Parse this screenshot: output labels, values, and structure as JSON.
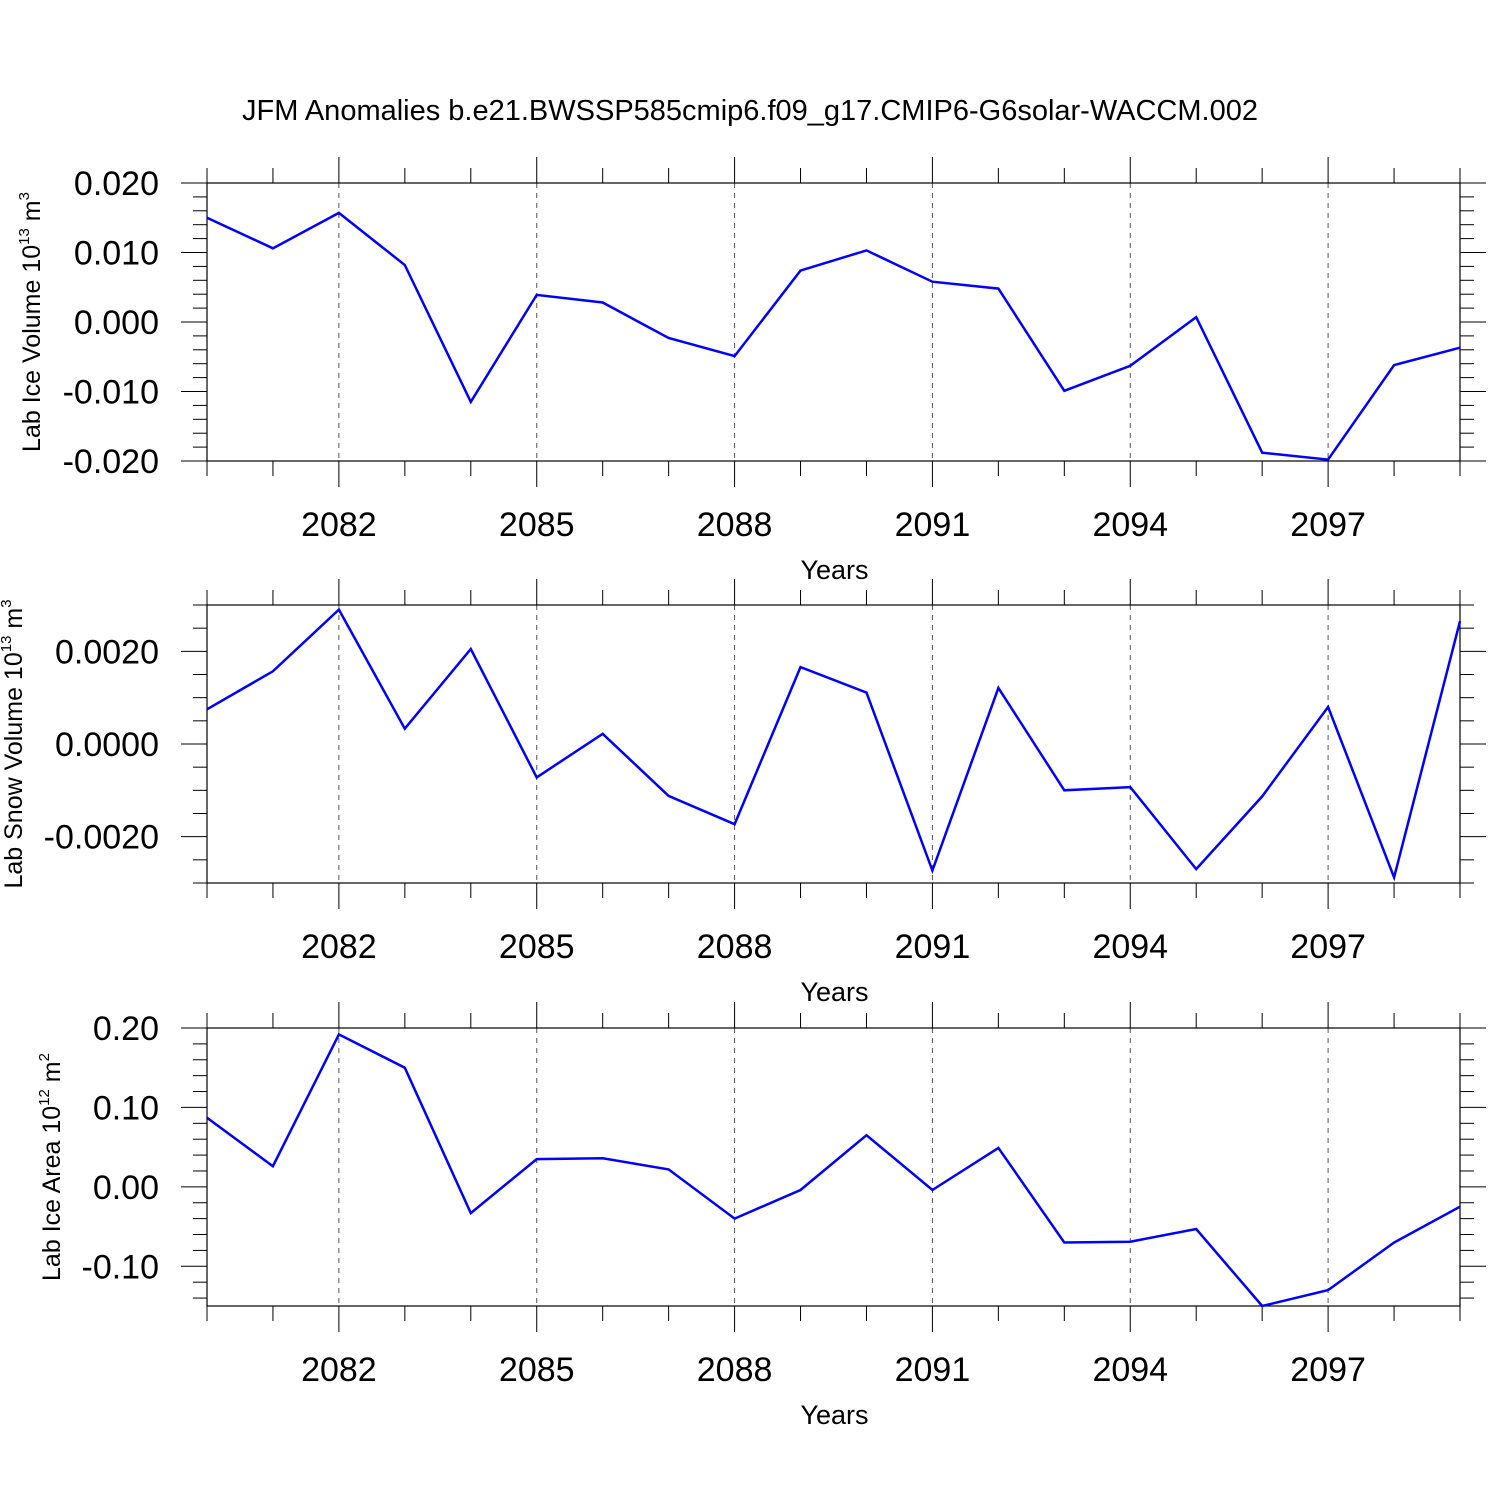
{
  "title": "JFM Anomalies b.e21.BWSSP585cmip6.f09_g17.CMIP6-G6solar-WACCM.002",
  "line_color": "#0000ff",
  "chart_data": [
    {
      "type": "line",
      "title": "JFM Anomalies b.e21.BWSSP585cmip6.f09_g17.CMIP6-G6solar-WACCM.002",
      "xlabel": "Years",
      "ylabel": {
        "base": "Lab Ice Volume 10",
        "exp": "13",
        "unit": " m",
        "unit_exp": "3"
      },
      "x": [
        2080,
        2081,
        2082,
        2083,
        2084,
        2085,
        2086,
        2087,
        2088,
        2089,
        2090,
        2091,
        2092,
        2093,
        2094,
        2095,
        2096,
        2097,
        2098,
        2099
      ],
      "values": [
        0.015,
        0.0106,
        0.0157,
        0.0082,
        -0.0115,
        0.0039,
        0.0028,
        -0.0023,
        -0.0049,
        0.0074,
        0.0103,
        0.0058,
        0.0048,
        -0.0099,
        -0.0063,
        0.0007,
        -0.0188,
        -0.0198,
        -0.0062,
        -0.0037
      ],
      "xlim": [
        2080,
        2099
      ],
      "ylim": [
        -0.02,
        0.02
      ],
      "x_tick_values": [
        2082,
        2085,
        2088,
        2091,
        2094,
        2097
      ],
      "x_tick_labels": [
        "2082",
        "2085",
        "2088",
        "2091",
        "2094",
        "2097"
      ],
      "y_tick_values": [
        0.02,
        0.01,
        0.0,
        -0.01,
        -0.02
      ],
      "y_tick_labels": [
        "0.020",
        "0.010",
        "0.000",
        "-0.010",
        "-0.020"
      ],
      "y_minor_step": 0.002,
      "grid": "dashed vertical at x ticks"
    },
    {
      "type": "line",
      "xlabel": "Years",
      "ylabel": {
        "base": "Lab Snow Volume 10",
        "exp": "13",
        "unit": " m",
        "unit_exp": "3"
      },
      "x": [
        2080,
        2081,
        2082,
        2083,
        2084,
        2085,
        2086,
        2087,
        2088,
        2089,
        2090,
        2091,
        2092,
        2093,
        2094,
        2095,
        2096,
        2097,
        2098,
        2099
      ],
      "values": [
        0.00075,
        0.00157,
        0.0029,
        0.00033,
        0.00205,
        -0.00072,
        0.00022,
        -0.00112,
        -0.00173,
        0.00166,
        0.00111,
        -0.00273,
        0.00121,
        -0.001,
        -0.00093,
        -0.0027,
        -0.00113,
        0.0008,
        -0.00288,
        0.00265
      ],
      "xlim": [
        2080,
        2099
      ],
      "ylim": [
        -0.003,
        0.003
      ],
      "x_tick_values": [
        2082,
        2085,
        2088,
        2091,
        2094,
        2097
      ],
      "x_tick_labels": [
        "2082",
        "2085",
        "2088",
        "2091",
        "2094",
        "2097"
      ],
      "y_tick_values": [
        0.002,
        0.0,
        -0.002
      ],
      "y_tick_labels": [
        "0.0020",
        "0.0000",
        "-0.0020"
      ],
      "y_minor_step": 0.0005,
      "grid": "dashed vertical at x ticks"
    },
    {
      "type": "line",
      "xlabel": "Years",
      "ylabel": {
        "base": "Lab Ice Area 10",
        "exp": "12",
        "unit": " m",
        "unit_exp": "2"
      },
      "x": [
        2080,
        2081,
        2082,
        2083,
        2084,
        2085,
        2086,
        2087,
        2088,
        2089,
        2090,
        2091,
        2092,
        2093,
        2094,
        2095,
        2096,
        2097,
        2098,
        2099
      ],
      "values": [
        0.087,
        0.026,
        0.192,
        0.15,
        -0.033,
        0.035,
        0.036,
        0.022,
        -0.04,
        -0.004,
        0.065,
        -0.004,
        0.049,
        -0.07,
        -0.069,
        -0.053,
        -0.15,
        -0.13,
        -0.07,
        -0.025
      ],
      "xlim": [
        2080,
        2099
      ],
      "ylim": [
        -0.15,
        0.2
      ],
      "x_tick_values": [
        2082,
        2085,
        2088,
        2091,
        2094,
        2097
      ],
      "x_tick_labels": [
        "2082",
        "2085",
        "2088",
        "2091",
        "2094",
        "2097"
      ],
      "y_tick_values": [
        0.2,
        0.1,
        0.0,
        -0.1
      ],
      "y_tick_labels": [
        "0.20",
        "0.10",
        "0.00",
        "-0.10"
      ],
      "y_minor_step": 0.02,
      "grid": "dashed vertical at x ticks"
    }
  ]
}
